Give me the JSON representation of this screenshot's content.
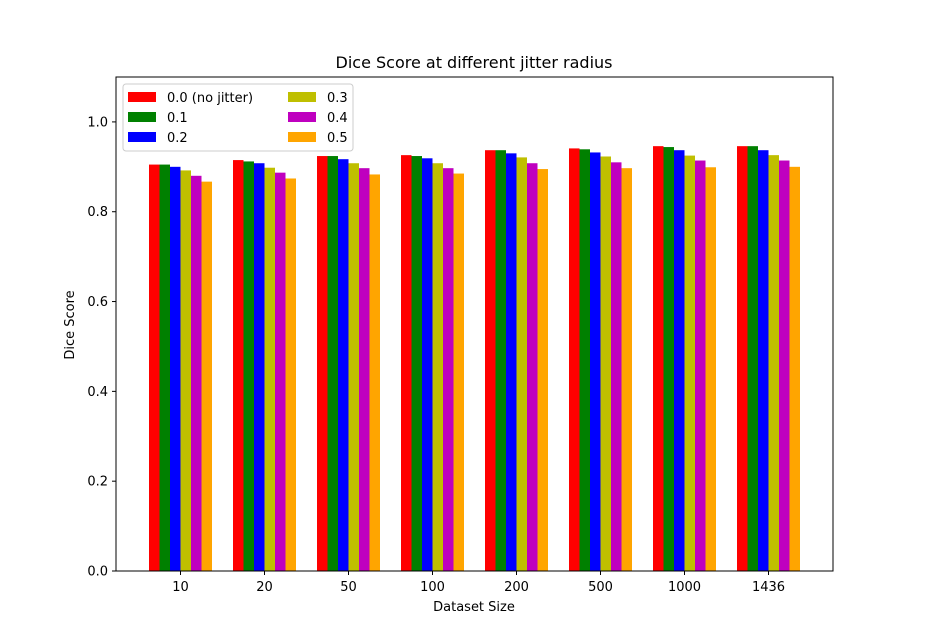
{
  "chart_data": {
    "type": "bar",
    "title": "Dice Score at different jitter radius",
    "xlabel": "Dataset Size",
    "ylabel": "Dice Score",
    "categories": [
      "10",
      "20",
      "50",
      "100",
      "200",
      "500",
      "1000",
      "1436"
    ],
    "ylim": [
      0,
      1.1
    ],
    "yticks": [
      "0.0",
      "0.2",
      "0.4",
      "0.6",
      "0.8",
      "1.0"
    ],
    "grid": false,
    "legend_position": "top-left",
    "legend_columns": 2,
    "series": [
      {
        "name": "0.0 (no jitter)",
        "color": "#ff0000",
        "values": [
          0.905,
          0.915,
          0.924,
          0.926,
          0.937,
          0.941,
          0.946,
          0.946
        ]
      },
      {
        "name": "0.1",
        "color": "#008000",
        "values": [
          0.905,
          0.912,
          0.924,
          0.924,
          0.937,
          0.939,
          0.944,
          0.946
        ]
      },
      {
        "name": "0.2",
        "color": "#0000ff",
        "values": [
          0.9,
          0.908,
          0.917,
          0.919,
          0.93,
          0.932,
          0.937,
          0.937
        ]
      },
      {
        "name": "0.3",
        "color": "#bfbf00",
        "values": [
          0.892,
          0.898,
          0.908,
          0.908,
          0.921,
          0.923,
          0.925,
          0.926
        ]
      },
      {
        "name": "0.4",
        "color": "#bf00bf",
        "values": [
          0.88,
          0.887,
          0.897,
          0.897,
          0.908,
          0.91,
          0.914,
          0.914
        ]
      },
      {
        "name": "0.5",
        "color": "#ffa500",
        "values": [
          0.867,
          0.874,
          0.883,
          0.885,
          0.895,
          0.897,
          0.899,
          0.9
        ]
      }
    ]
  }
}
